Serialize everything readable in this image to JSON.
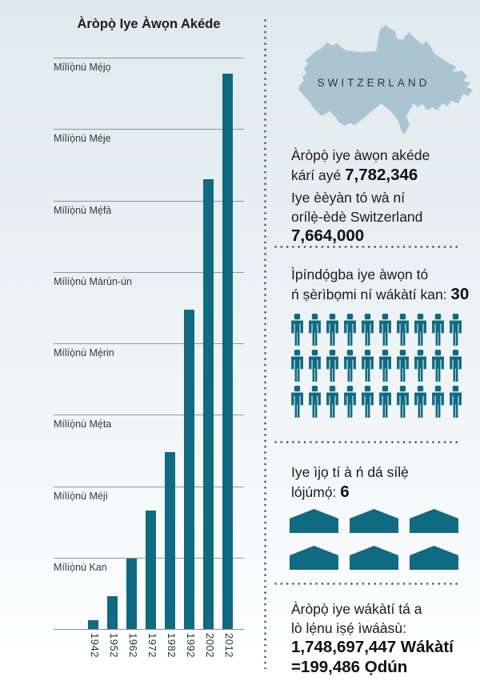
{
  "colors": {
    "accent": "#106a82",
    "map_fill": "#abc4d2",
    "background_top": "#e0eaee",
    "background_bottom": "#ffffff"
  },
  "chart_data": {
    "type": "bar",
    "title": "Àròpọ̀ Iye Àwọn Akéde",
    "categories": [
      "1942",
      "1952",
      "1962",
      "1972",
      "1982",
      "1992",
      "2002",
      "2012"
    ],
    "values": [
      0.12,
      0.46,
      0.99,
      1.66,
      2.48,
      4.47,
      6.3,
      7.78
    ],
    "unit": "millions",
    "ylim": [
      0,
      8.2
    ],
    "grid": true,
    "legend": "none",
    "bar_color": "#106a82",
    "yticks": [
      {
        "value": 8,
        "label": "Mílíọ̀nù Mẹ́jọ"
      },
      {
        "value": 7,
        "label": "Mílíọ̀nù Méje"
      },
      {
        "value": 6,
        "label": "Mílíọ̀nù Mẹ́fà"
      },
      {
        "value": 5,
        "label": "Mílíọ̀nù Márùn-ún"
      },
      {
        "value": 4,
        "label": "Mílíọ̀nù Mẹ́rin"
      },
      {
        "value": 3,
        "label": "Mílíọ̀nù Mẹ́ta"
      },
      {
        "value": 2,
        "label": "Mílíọ̀nù Méjì"
      },
      {
        "value": 1,
        "label": "Mílíọ̀nù Kan"
      }
    ]
  },
  "right_panel": {
    "map_label": "SWITZERLAND",
    "stats": {
      "p1_line1": "Àròpọ̀ iye àwọn akéde",
      "p1_line2": "kárí ayé",
      "p1_value": "7,782,346",
      "p2_line1": "Iye èèyàn tó wà ní",
      "p2_line2": "orílẹ̀-èdè Switzerland",
      "p2_value": "7,664,000"
    },
    "baptisms": {
      "label_line1": "Ìpíndọ́gba iye àwọn tó",
      "label_line2": "ń ṣèrìbọmi ní wákàtí kan:",
      "value": "30",
      "icon": "person-icon",
      "count": 30,
      "per_row": 10
    },
    "congregations": {
      "label_line1": "Iye ìjọ tí à ń dá sílẹ̀",
      "label_line2": "lójúmọ́:",
      "value": "6",
      "icon": "house-icon",
      "count": 6,
      "per_row": 3
    },
    "hours": {
      "label_line1": "Àròpọ̀ iye wákàtí tá a",
      "label_line2": "lò lẹ́nu iṣẹ́ ìwáàsù:",
      "value_line1": "1,748,697,447 Wákàtí",
      "value_line2": "=199,486 Ọdún"
    }
  }
}
